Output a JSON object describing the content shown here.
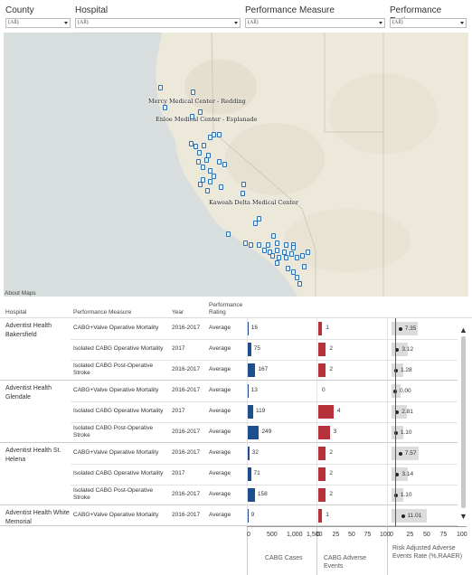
{
  "filters": [
    {
      "label": "County",
      "value": "(All)"
    },
    {
      "label": "Hospital",
      "value": "(All)"
    },
    {
      "label": "Performance Measure",
      "value": "(All)"
    },
    {
      "label": "Performance Rating",
      "value": "(All)"
    }
  ],
  "map": {
    "labels": [
      "Mercy Medical Center - Redding",
      "Enloe Medical Center - Esplanade",
      "Kaweah Delta Medical Center"
    ],
    "about": "About Maps"
  },
  "table": {
    "headers": {
      "hospital": "Hospital",
      "measure": "Performance Measure",
      "year": "Year",
      "rating": "Performance Rating"
    },
    "groups": [
      {
        "hospital": "Adventist Health Bakersfield",
        "rows": [
          {
            "measure": "CABG+Valve Operative Mortality",
            "year": "2016-2017",
            "rating": "Average",
            "cases": 16,
            "cases_label": "16",
            "events": 1,
            "events_label": "1",
            "rate": 7.35,
            "rate_label": "7.35"
          },
          {
            "measure": "Isolated CABG Operative Mortality",
            "year": "2017",
            "rating": "Average",
            "cases": 75,
            "cases_label": "75",
            "events": 2,
            "events_label": "2",
            "rate": 3.12,
            "rate_label": "3.12"
          },
          {
            "measure": "Isolated CABG Post-Operative Stroke",
            "year": "2016-2017",
            "rating": "Average",
            "cases": 167,
            "cases_label": "167",
            "events": 2,
            "events_label": "2",
            "rate": 1.28,
            "rate_label": "1.28"
          }
        ]
      },
      {
        "hospital": "Adventist Health Glendale",
        "rows": [
          {
            "measure": "CABG+Valve Operative Mortality",
            "year": "2016-2017",
            "rating": "Average",
            "cases": 13,
            "cases_label": "13",
            "events": 0,
            "events_label": "0",
            "rate": 0.0,
            "rate_label": "0.00"
          },
          {
            "measure": "Isolated CABG Operative Mortality",
            "year": "2017",
            "rating": "Average",
            "cases": 119,
            "cases_label": "119",
            "events": 4,
            "events_label": "4",
            "rate": 2.81,
            "rate_label": "2.81"
          },
          {
            "measure": "Isolated CABG Post-Operative Stroke",
            "year": "2016-2017",
            "rating": "Average",
            "cases": 249,
            "cases_label": "249",
            "events": 3,
            "events_label": "3",
            "rate": 1.1,
            "rate_label": "1.10"
          }
        ]
      },
      {
        "hospital": "Adventist Health St. Helena",
        "rows": [
          {
            "measure": "CABG+Valve Operative Mortality",
            "year": "2016-2017",
            "rating": "Average",
            "cases": 32,
            "cases_label": "32",
            "events": 2,
            "events_label": "2",
            "rate": 7.57,
            "rate_label": "7.57"
          },
          {
            "measure": "Isolated CABG Operative Mortality",
            "year": "2017",
            "rating": "Average",
            "cases": 71,
            "cases_label": "71",
            "events": 2,
            "events_label": "2",
            "rate": 3.14,
            "rate_label": "3.14"
          },
          {
            "measure": "Isolated CABG Post-Operative Stroke",
            "year": "2016-2017",
            "rating": "Average",
            "cases": 158,
            "cases_label": "158",
            "events": 2,
            "events_label": "2",
            "rate": 1.1,
            "rate_label": "1.10"
          }
        ]
      },
      {
        "hospital": "Adventist Health White Memorial",
        "rows": [
          {
            "measure": "CABG+Valve Operative Mortality",
            "year": "2016-2017",
            "rating": "Average",
            "cases": 9,
            "cases_label": "9",
            "events": 1,
            "events_label": "1",
            "rate": 11.01,
            "rate_label": "11.01"
          }
        ]
      }
    ]
  },
  "axes": {
    "cases": {
      "ticks": [
        "0",
        "500",
        "1,000",
        "1,500"
      ],
      "title": "CABG Cases"
    },
    "events": {
      "ticks": [
        "0",
        "25",
        "50",
        "75",
        "100"
      ],
      "title": "CABG Adverse Events"
    },
    "rate": {
      "ticks": [
        "0",
        "25",
        "50",
        "75",
        "100"
      ],
      "title": "Risk Adjusted Adverse Events Rate (%,RAAER)"
    }
  },
  "colors": {
    "cases_bar": "#1f4e8c",
    "events_bar": "#b5323a",
    "rate_ref_line": "#b5323a",
    "map_marker": "#2c6fb0"
  },
  "icons": {
    "scroll_up": "▲",
    "scroll_down": "▼"
  }
}
